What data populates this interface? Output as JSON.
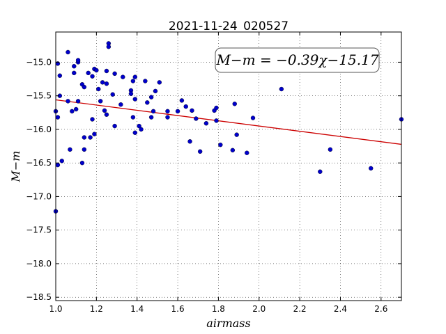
{
  "chart_data": {
    "type": "scatter",
    "title": "2021-11-24_020527",
    "xlabel": "airmass",
    "ylabel": "M−m",
    "xlim": [
      1.0,
      2.7
    ],
    "ylim": [
      -18.55,
      -14.55
    ],
    "xticks": [
      1.0,
      1.2,
      1.4,
      1.6,
      1.8,
      2.0,
      2.2,
      2.4,
      2.6
    ],
    "xtick_labels": [
      "1.0",
      "1.2",
      "1.4",
      "1.6",
      "1.8",
      "2.0",
      "2.2",
      "2.4",
      "2.6"
    ],
    "yticks": [
      -15.0,
      -15.5,
      -16.0,
      -16.5,
      -17.0,
      -17.5,
      -18.0,
      -18.5
    ],
    "ytick_labels": [
      "−15.0",
      "−15.5",
      "−16.0",
      "−16.5",
      "−17.0",
      "−17.5",
      "−18.0",
      "−18.5"
    ],
    "grid": true,
    "annotation": "M−m = −0.39χ−15.17",
    "fit_line": {
      "slope": -0.39,
      "intercept": -15.17,
      "color": "#cc0000"
    },
    "marker_color": "#0000cc",
    "points": [
      [
        1.0,
        -15.73
      ],
      [
        1.0,
        -17.22
      ],
      [
        1.01,
        -15.82
      ],
      [
        1.01,
        -16.53
      ],
      [
        1.01,
        -15.02
      ],
      [
        1.02,
        -15.2
      ],
      [
        1.02,
        -15.5
      ],
      [
        1.03,
        -16.47
      ],
      [
        1.06,
        -14.85
      ],
      [
        1.06,
        -15.58
      ],
      [
        1.07,
        -16.3
      ],
      [
        1.08,
        -15.73
      ],
      [
        1.09,
        -15.06
      ],
      [
        1.09,
        -15.16
      ],
      [
        1.1,
        -15.7
      ],
      [
        1.11,
        -15.0
      ],
      [
        1.11,
        -14.97
      ],
      [
        1.11,
        -15.58
      ],
      [
        1.13,
        -16.5
      ],
      [
        1.13,
        -15.33
      ],
      [
        1.14,
        -15.37
      ],
      [
        1.14,
        -16.3
      ],
      [
        1.14,
        -16.12
      ],
      [
        1.16,
        -15.16
      ],
      [
        1.17,
        -16.12
      ],
      [
        1.18,
        -15.21
      ],
      [
        1.18,
        -15.85
      ],
      [
        1.19,
        -16.07
      ],
      [
        1.19,
        -15.1
      ],
      [
        1.2,
        -15.12
      ],
      [
        1.21,
        -15.4
      ],
      [
        1.22,
        -15.58
      ],
      [
        1.23,
        -15.3
      ],
      [
        1.24,
        -15.72
      ],
      [
        1.25,
        -15.13
      ],
      [
        1.25,
        -15.32
      ],
      [
        1.25,
        -15.78
      ],
      [
        1.26,
        -14.72
      ],
      [
        1.26,
        -14.77
      ],
      [
        1.28,
        -15.48
      ],
      [
        1.29,
        -15.17
      ],
      [
        1.29,
        -15.95
      ],
      [
        1.32,
        -15.63
      ],
      [
        1.33,
        -15.22
      ],
      [
        1.37,
        -15.42
      ],
      [
        1.37,
        -15.47
      ],
      [
        1.38,
        -15.28
      ],
      [
        1.38,
        -15.82
      ],
      [
        1.39,
        -15.22
      ],
      [
        1.39,
        -15.55
      ],
      [
        1.39,
        -16.05
      ],
      [
        1.41,
        -15.95
      ],
      [
        1.42,
        -16.0
      ],
      [
        1.44,
        -15.28
      ],
      [
        1.45,
        -15.6
      ],
      [
        1.47,
        -15.52
      ],
      [
        1.47,
        -15.82
      ],
      [
        1.48,
        -15.73
      ],
      [
        1.49,
        -15.43
      ],
      [
        1.51,
        -15.3
      ],
      [
        1.55,
        -15.73
      ],
      [
        1.55,
        -15.82
      ],
      [
        1.6,
        -15.73
      ],
      [
        1.62,
        -15.57
      ],
      [
        1.64,
        -15.66
      ],
      [
        1.66,
        -16.18
      ],
      [
        1.67,
        -15.72
      ],
      [
        1.69,
        -15.84
      ],
      [
        1.71,
        -16.33
      ],
      [
        1.74,
        -15.91
      ],
      [
        1.78,
        -15.72
      ],
      [
        1.79,
        -15.87
      ],
      [
        1.79,
        -15.68
      ],
      [
        1.81,
        -16.23
      ],
      [
        1.87,
        -16.31
      ],
      [
        1.88,
        -15.62
      ],
      [
        1.89,
        -16.08
      ],
      [
        1.94,
        -16.35
      ],
      [
        1.97,
        -15.83
      ],
      [
        2.11,
        -15.4
      ],
      [
        2.3,
        -16.63
      ],
      [
        2.35,
        -16.3
      ],
      [
        2.55,
        -16.58
      ],
      [
        2.7,
        -15.85
      ]
    ]
  }
}
